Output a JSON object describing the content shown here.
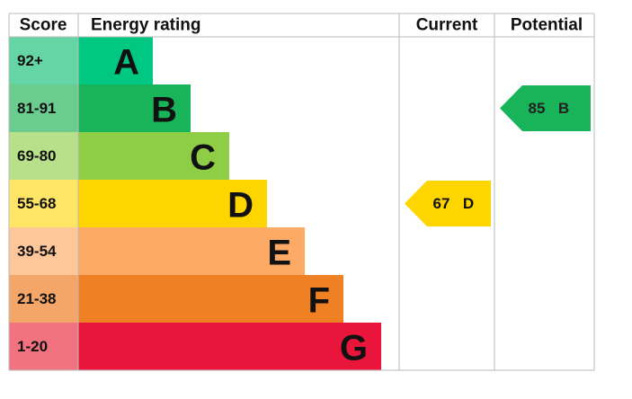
{
  "headers": [
    "Score",
    "Energy rating",
    "Current",
    "Potential"
  ],
  "bands": [
    {
      "score": "92+",
      "letter": "A",
      "color": "#00c781",
      "score_color": "#66d5a6"
    },
    {
      "score": "81-91",
      "letter": "B",
      "color": "#19b459",
      "score_color": "#6bcc8f"
    },
    {
      "score": "69-80",
      "letter": "C",
      "color": "#8dce46",
      "score_color": "#b8e08a"
    },
    {
      "score": "55-68",
      "letter": "D",
      "color": "#ffd500",
      "score_color": "#ffe566"
    },
    {
      "score": "39-54",
      "letter": "E",
      "color": "#fcaa65",
      "score_color": "#fdc79a"
    },
    {
      "score": "21-38",
      "letter": "F",
      "color": "#ef8023",
      "score_color": "#f4a668"
    },
    {
      "score": "1-20",
      "letter": "G",
      "color": "#e9153b",
      "score_color": "#f0737f"
    }
  ],
  "current": {
    "value": 67,
    "letter": "D"
  },
  "potential": {
    "value": 85,
    "letter": "B"
  }
}
